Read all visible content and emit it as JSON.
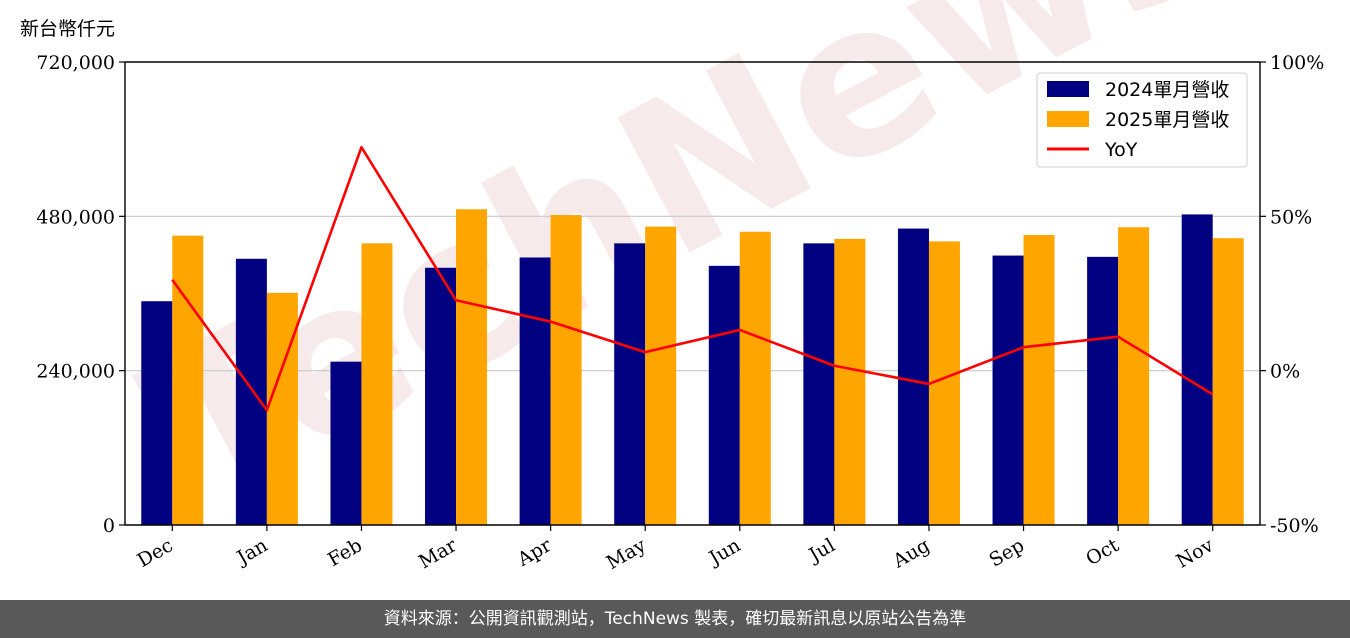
{
  "unit_label": "新台幣仟元",
  "watermark": "TechNews",
  "footer": "資料來源：公開資訊觀測站，TechNews 製表，確切最新訊息以原站公告為準",
  "colors": {
    "bar_2024": "#000080",
    "bar_2025": "#FFA500",
    "yoy": "#FF0000"
  },
  "chart_data": {
    "type": "bar",
    "categories": [
      "Dec",
      "Jan",
      "Feb",
      "Mar",
      "Apr",
      "May",
      "Jun",
      "Jul",
      "Aug",
      "Sep",
      "Oct",
      "Nov"
    ],
    "series": [
      {
        "name": "2024單月營收",
        "axis": "left",
        "values": [
          348000,
          414000,
          254000,
          400000,
          416000,
          438000,
          403000,
          438000,
          461000,
          419000,
          417000,
          483000
        ]
      },
      {
        "name": "2025單月營收",
        "axis": "left",
        "values": [
          450000,
          361000,
          438000,
          491000,
          482000,
          464000,
          456000,
          445000,
          441000,
          451000,
          463000,
          446000
        ]
      }
    ],
    "line_series": {
      "name": "YoY",
      "axis": "right",
      "values": [
        29.4,
        -12.8,
        72.4,
        22.8,
        15.9,
        6.0,
        13.2,
        1.6,
        -4.3,
        7.6,
        11.0,
        -7.7
      ]
    },
    "y_left": {
      "ylim": [
        0,
        720000
      ],
      "ticks": [
        "0",
        "240,000",
        "480,000",
        "720,000"
      ],
      "tick_values": [
        0,
        240000,
        480000,
        720000
      ]
    },
    "y_right": {
      "ylim": [
        -50,
        100
      ],
      "ticks": [
        "-50%",
        "0%",
        "50%",
        "100%"
      ],
      "tick_values": [
        -50,
        0,
        50,
        100
      ]
    },
    "grid": true,
    "legend": "top-right"
  }
}
